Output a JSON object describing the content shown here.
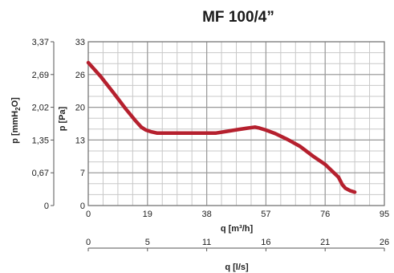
{
  "chart_data": {
    "type": "line",
    "title": "MF 100/4”",
    "xlabel": "q [m³/h]",
    "ylabel": "p [Pa]",
    "ylabel2_main": "p [mmH",
    "ylabel2_sub": "2",
    "ylabel2_end": "O]",
    "xlabel2": "q [l/s]",
    "xlim": [
      0,
      95
    ],
    "ylim": [
      0,
      33
    ],
    "xticks": [
      "0",
      "19",
      "38",
      "57",
      "76",
      "95"
    ],
    "xtick_values": [
      0,
      19,
      38,
      57,
      76,
      95
    ],
    "yticks": [
      "0",
      "7",
      "13",
      "20",
      "26",
      "33"
    ],
    "ytick_values": [
      0,
      6.6,
      13.2,
      19.8,
      26.4,
      33
    ],
    "yticks2": [
      "0",
      "0,67",
      "1,35",
      "2,02",
      "2,69",
      "3,37"
    ],
    "xticks2": [
      "0",
      "5",
      "11",
      "16",
      "21",
      "26"
    ],
    "grid": true,
    "color": "#b5202e",
    "series": [
      {
        "values_x": [
          0,
          4,
          8,
          12,
          15,
          17,
          18.5,
          20,
          22,
          26,
          30,
          34,
          38,
          41,
          44,
          48,
          51,
          53.5,
          55,
          57,
          60,
          64,
          68,
          72,
          76,
          80.3,
          81.5,
          82.5,
          84,
          85.5
        ],
        "values_y": [
          28.8,
          26.0,
          22.8,
          19.5,
          17.2,
          15.8,
          15.2,
          14.9,
          14.6,
          14.6,
          14.6,
          14.6,
          14.6,
          14.6,
          14.9,
          15.3,
          15.6,
          15.8,
          15.6,
          15.2,
          14.5,
          13.3,
          11.9,
          10.0,
          8.3,
          5.7,
          4.2,
          3.5,
          3.0,
          2.7
        ]
      }
    ]
  }
}
